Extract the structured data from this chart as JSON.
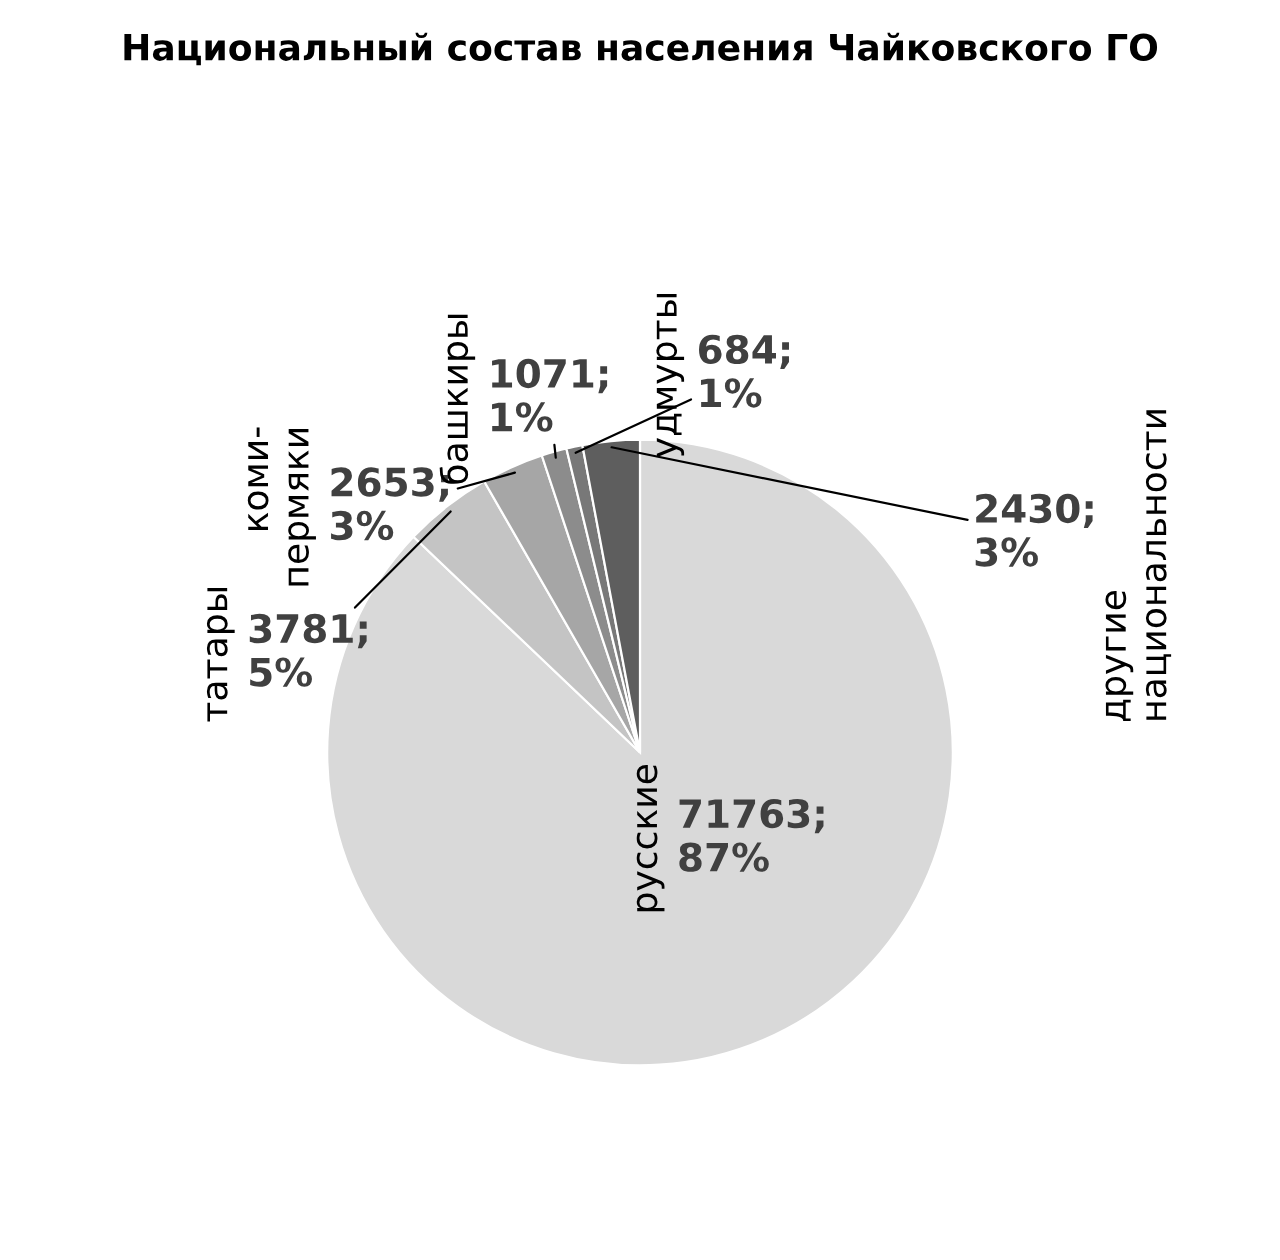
{
  "chart_data": {
    "type": "pie",
    "title": "Национальный состав населения Чайковского ГО",
    "categories": [
      "русские",
      "татары",
      "коми-\nпермяки",
      "башкиры",
      "удмурты",
      "другие\nнациональности"
    ],
    "values": [
      71763,
      3781,
      2653,
      1071,
      684,
      2430
    ],
    "colors": [
      "#d9d9d9",
      "#c4c4c4",
      "#a6a6a6",
      "#8c8c8c",
      "#787878",
      "#5e5e5e"
    ],
    "value_labels": [
      "71763;\n87%",
      "3781;\n5%",
      "2653;\n3%",
      "1071;\n1%",
      "684;\n1%",
      "2430;\n3%"
    ],
    "legend": false
  }
}
